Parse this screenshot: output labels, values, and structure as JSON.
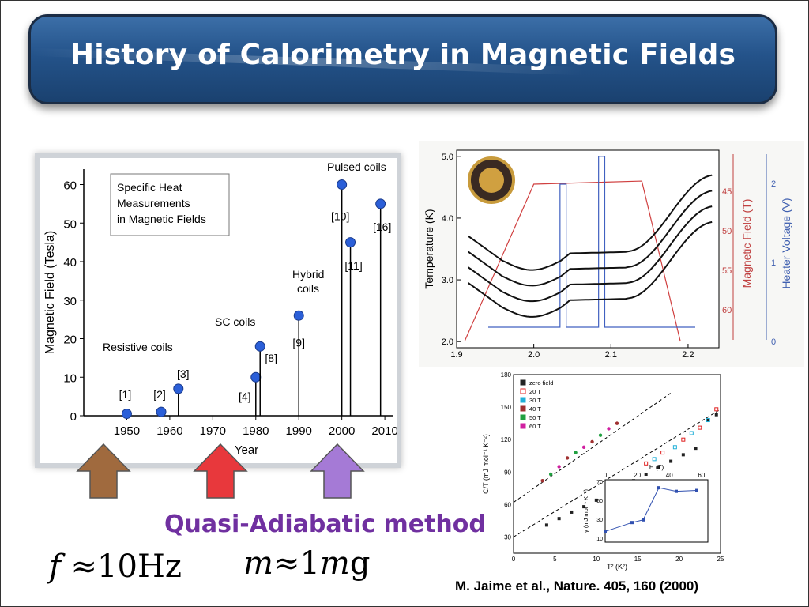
{
  "slide": {
    "title": "History of Calorimetry in Magnetic Fields",
    "method_label": "Quasi-Adiabatic method",
    "formula_f": {
      "lhs": "f",
      "op": "≈",
      "value": "10",
      "unit": "Hz"
    },
    "formula_m": {
      "lhs": "m",
      "op": "≈",
      "value": "1",
      "unit_prefix": "m",
      "unit": "g"
    },
    "citation": "M. Jaime et al., Nature. 405, 160 (2000)",
    "arrows": [
      {
        "name": "brown",
        "color": "#a06a3e"
      },
      {
        "name": "red",
        "color": "#e8383c"
      },
      {
        "name": "purple",
        "color": "#a57ad6"
      }
    ]
  },
  "chart_data": [
    {
      "type": "scatter",
      "title": "",
      "xlabel": "Year",
      "ylabel": "Magnetic Field (Tesla)",
      "xlim": [
        1940,
        2012
      ],
      "ylim": [
        0,
        64
      ],
      "xticks": [
        1950,
        1960,
        1970,
        1980,
        1990,
        2000,
        2010
      ],
      "yticks": [
        0,
        10,
        20,
        30,
        40,
        50,
        60
      ],
      "legend_box": [
        "Specific Heat",
        "Measurements",
        "in Magnetic Fields"
      ],
      "points": [
        {
          "x": 1950,
          "y": 0.5,
          "ref": "[1]"
        },
        {
          "x": 1958,
          "y": 1,
          "ref": "[2]"
        },
        {
          "x": 1962,
          "y": 7,
          "ref": "[3]"
        },
        {
          "x": 1980,
          "y": 10,
          "ref": "[4]"
        },
        {
          "x": 1981,
          "y": 18,
          "ref": "[8]"
        },
        {
          "x": 1990,
          "y": 26,
          "ref": "[9]"
        },
        {
          "x": 2000,
          "y": 60,
          "ref": "[10]"
        },
        {
          "x": 2002,
          "y": 45,
          "ref": "[11]"
        },
        {
          "x": 2009,
          "y": 55,
          "ref": "[16]"
        }
      ],
      "annotations": [
        "Resistive coils",
        "SC coils",
        "Hybrid coils",
        "Pulsed coils"
      ]
    },
    {
      "type": "line",
      "xlabel": "",
      "ylabel_left": "Temperature (K)",
      "ylabel_mid": "Magnetic Field (T)",
      "ylabel_right": "Heater Voltage (V)",
      "xlim": [
        1.9,
        2.24
      ],
      "ylim": [
        1.9,
        5.1
      ],
      "xticks": [
        "1.9",
        "2.0",
        "2.1",
        "2.2"
      ],
      "yticks": [
        "2.0",
        "3.0",
        "4.0",
        "5.0"
      ],
      "field_ticks": [
        "45",
        "50",
        "55",
        "60"
      ],
      "voltage_ticks": [
        "0",
        "1",
        "2"
      ],
      "series": [
        {
          "offset": 0.0
        },
        {
          "offset": 0.22
        },
        {
          "offset": 0.44
        },
        {
          "offset": 0.66
        }
      ]
    },
    {
      "type": "scatter",
      "xlabel": "T² (K²)",
      "ylabel": "C/T (mJ mol⁻¹ K⁻²)",
      "xlim": [
        0,
        25
      ],
      "ylim": [
        15,
        180
      ],
      "xticks": [
        "0",
        "5",
        "10",
        "15",
        "20",
        "25"
      ],
      "yticks": [
        "30",
        "60",
        "90",
        "120",
        "150",
        "180"
      ],
      "legend": [
        {
          "label": "zero field",
          "color": "#222222",
          "marker": "square"
        },
        {
          "label": "20 T",
          "color": "#e02020",
          "marker": "open-square"
        },
        {
          "label": "30 T",
          "color": "#20b0d8",
          "marker": "triangle"
        },
        {
          "label": "40 T",
          "color": "#a03030",
          "marker": "circle"
        },
        {
          "label": "50 T",
          "color": "#20a040",
          "marker": "circle"
        },
        {
          "label": "60 T",
          "color": "#d020a0",
          "marker": "triangle-down"
        }
      ],
      "zero_field": [
        [
          4,
          41
        ],
        [
          5.5,
          47
        ],
        [
          7,
          53
        ],
        [
          8.5,
          58
        ],
        [
          10,
          64
        ],
        [
          11.5,
          70
        ],
        [
          13,
          76
        ],
        [
          14.5,
          82
        ],
        [
          16,
          88
        ],
        [
          17.5,
          94
        ],
        [
          19,
          100
        ],
        [
          20.5,
          106
        ],
        [
          22,
          112
        ],
        [
          23.5,
          138
        ],
        [
          24.5,
          143
        ]
      ],
      "field_group": [
        [
          16,
          98
        ],
        [
          17,
          102
        ],
        [
          18,
          108
        ],
        [
          19.5,
          113
        ],
        [
          20.5,
          120
        ],
        [
          21.5,
          126
        ],
        [
          22.5,
          131
        ],
        [
          23.5,
          138
        ],
        [
          24.5,
          148
        ]
      ],
      "high_field": [
        [
          3.5,
          82
        ],
        [
          4.5,
          88
        ],
        [
          5.5,
          95
        ],
        [
          6.5,
          103
        ],
        [
          7.5,
          108
        ],
        [
          8.5,
          113
        ],
        [
          9.5,
          118
        ],
        [
          10.5,
          124
        ],
        [
          11.5,
          130
        ],
        [
          12.5,
          135
        ]
      ],
      "inset": {
        "xlabel": "H (T)",
        "ylabel": "γ (mJ mol⁻¹ K⁻²)",
        "xticks": [
          "0",
          "20",
          "40",
          "60"
        ],
        "yticks": [
          "10",
          "30",
          "50",
          "70"
        ],
        "points": [
          [
            0,
            17
          ],
          [
            17,
            27
          ],
          [
            24,
            30
          ],
          [
            34,
            66
          ],
          [
            45,
            62
          ],
          [
            58,
            63
          ]
        ]
      }
    }
  ]
}
